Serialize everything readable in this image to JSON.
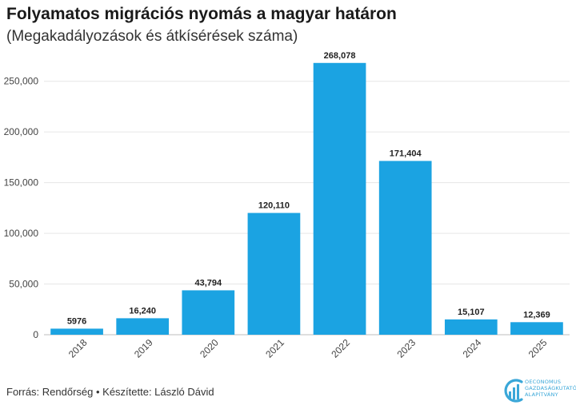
{
  "header": {
    "title": "Folyamatos migrációs nyomás a magyar határon",
    "subtitle": "(Megakadályozások és átkísérések száma)"
  },
  "chart_data": {
    "type": "bar",
    "categories": [
      "2018",
      "2019",
      "2020",
      "2021",
      "2022",
      "2023",
      "2024",
      "2025"
    ],
    "values": [
      5976,
      16240,
      43794,
      120110,
      268078,
      171404,
      15107,
      12369
    ],
    "data_labels": [
      "5976",
      "16,240",
      "43,794",
      "120,110",
      "268,078",
      "171,404",
      "15,107",
      "12,369"
    ],
    "title": "Folyamatos migrációs nyomás a magyar határon",
    "subtitle": "(Megakadályozások és átkísérések száma)",
    "xlabel": "",
    "ylabel": "",
    "ylim": [
      0,
      275000
    ],
    "yticks": [
      0,
      50000,
      100000,
      150000,
      200000,
      250000
    ],
    "ytick_labels": [
      "0",
      "50,000",
      "100,000",
      "150,000",
      "200,000",
      "250,000"
    ],
    "grid": true,
    "bar_color": "#1ba3e2",
    "grid_color": "#e6e6e6"
  },
  "footer": {
    "source": "Forrás: Rendőrség • Készítette: László Dávid"
  },
  "logo": {
    "icon": "oeconomus-logo-icon",
    "line1": "OECONOMUS",
    "line2": "GAZDASÁGKUTATÓ",
    "line3": "ALAPÍTVÁNY",
    "color": "#3aa7d8"
  }
}
